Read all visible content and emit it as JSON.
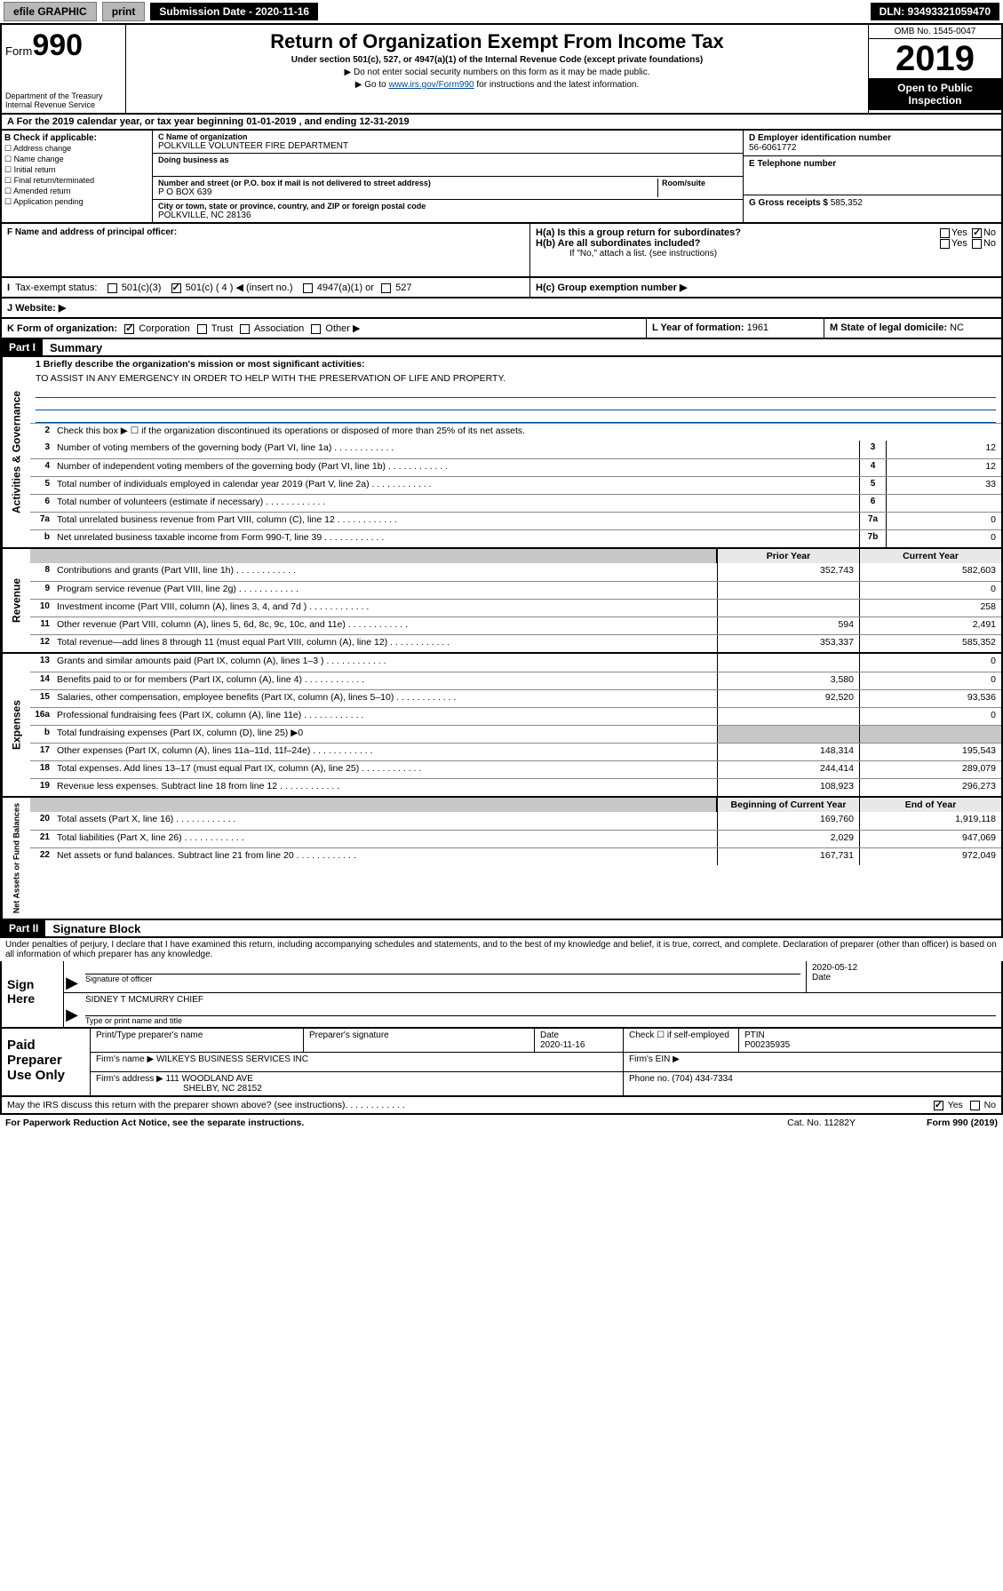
{
  "topbar": {
    "efile": "efile GRAPHIC",
    "print": "print",
    "submission": "Submission Date - 2020-11-16",
    "dln": "DLN: 93493321059470"
  },
  "header": {
    "form_prefix": "Form",
    "form_num": "990",
    "dept": "Department of the Treasury",
    "irs": "Internal Revenue Service",
    "title": "Return of Organization Exempt From Income Tax",
    "sub": "Under section 501(c), 527, or 4947(a)(1) of the Internal Revenue Code (except private foundations)",
    "note1": "▶ Do not enter social security numbers on this form as it may be made public.",
    "note2_pre": "▶ Go to ",
    "note2_link": "www.irs.gov/Form990",
    "note2_post": " for instructions and the latest information.",
    "omb": "OMB No. 1545-0047",
    "year": "2019",
    "open": "Open to Public Inspection"
  },
  "taxyear": "A For the 2019 calendar year, or tax year beginning 01-01-2019   , and ending 12-31-2019",
  "checkB": {
    "hdr": "B Check if applicable:",
    "items": [
      "Address change",
      "Name change",
      "Initial return",
      "Final return/terminated",
      "Amended return",
      "Application pending"
    ]
  },
  "entity": {
    "name_lbl": "C Name of organization",
    "name": "POLKVILLE VOLUNTEER FIRE DEPARTMENT",
    "dba_lbl": "Doing business as",
    "addr_lbl": "Number and street (or P.O. box if mail is not delivered to street address)",
    "addr": "P O BOX 639",
    "room_lbl": "Room/suite",
    "city_lbl": "City or town, state or province, country, and ZIP or foreign postal code",
    "city": "POLKVILLE, NC  28136"
  },
  "rightcol": {
    "ein_lbl": "D Employer identification number",
    "ein": "56-6061772",
    "tel_lbl": "E Telephone number",
    "gross_lbl": "G Gross receipts $",
    "gross": "585,352"
  },
  "rowF": {
    "f_lbl": "F  Name and address of principal officer:",
    "ha": "H(a)  Is this a group return for subordinates?",
    "hb": "H(b)  Are all subordinates included?",
    "hb_note": "If \"No,\" attach a list. (see instructions)",
    "hc": "H(c)  Group exemption number ▶",
    "yes": "Yes",
    "no": "No"
  },
  "rowI": {
    "lbl": "Tax-exempt status:",
    "opts": [
      "501(c)(3)",
      "501(c) ( 4 ) ◀ (insert no.)",
      "4947(a)(1) or",
      "527"
    ]
  },
  "rowJ": {
    "lbl": "J   Website: ▶"
  },
  "rowK": {
    "lbl": "K Form of organization:",
    "opts": [
      "Corporation",
      "Trust",
      "Association",
      "Other ▶"
    ],
    "l_lbl": "L Year of formation:",
    "l_val": "1961",
    "m_lbl": "M State of legal domicile:",
    "m_val": "NC"
  },
  "part1": {
    "tag": "Part I",
    "title": "Summary",
    "q1": "1  Briefly describe the organization's mission or most significant activities:",
    "mission": "TO ASSIST IN ANY EMERGENCY IN ORDER TO HELP WITH THE PRESERVATION OF LIFE AND PROPERTY.",
    "q2": "Check this box ▶ ☐  if the organization discontinued its operations or disposed of more than 25% of its net assets.",
    "governance_rows": [
      {
        "n": "3",
        "d": "Number of voting members of the governing body (Part VI, line 1a)",
        "box": "3",
        "v": "12"
      },
      {
        "n": "4",
        "d": "Number of independent voting members of the governing body (Part VI, line 1b)",
        "box": "4",
        "v": "12"
      },
      {
        "n": "5",
        "d": "Total number of individuals employed in calendar year 2019 (Part V, line 2a)",
        "box": "5",
        "v": "33"
      },
      {
        "n": "6",
        "d": "Total number of volunteers (estimate if necessary)",
        "box": "6",
        "v": ""
      },
      {
        "n": "7a",
        "d": "Total unrelated business revenue from Part VIII, column (C), line 12",
        "box": "7a",
        "v": "0"
      },
      {
        "n": "b",
        "d": "Net unrelated business taxable income from Form 990-T, line 39",
        "box": "7b",
        "v": "0"
      }
    ],
    "col_prior": "Prior Year",
    "col_current": "Current Year",
    "revenue_rows": [
      {
        "n": "8",
        "d": "Contributions and grants (Part VIII, line 1h)",
        "p": "352,743",
        "c": "582,603"
      },
      {
        "n": "9",
        "d": "Program service revenue (Part VIII, line 2g)",
        "p": "",
        "c": "0"
      },
      {
        "n": "10",
        "d": "Investment income (Part VIII, column (A), lines 3, 4, and 7d )",
        "p": "",
        "c": "258"
      },
      {
        "n": "11",
        "d": "Other revenue (Part VIII, column (A), lines 5, 6d, 8c, 9c, 10c, and 11e)",
        "p": "594",
        "c": "2,491"
      },
      {
        "n": "12",
        "d": "Total revenue—add lines 8 through 11 (must equal Part VIII, column (A), line 12)",
        "p": "353,337",
        "c": "585,352"
      }
    ],
    "expense_rows": [
      {
        "n": "13",
        "d": "Grants and similar amounts paid (Part IX, column (A), lines 1–3 )",
        "p": "",
        "c": "0"
      },
      {
        "n": "14",
        "d": "Benefits paid to or for members (Part IX, column (A), line 4)",
        "p": "3,580",
        "c": "0"
      },
      {
        "n": "15",
        "d": "Salaries, other compensation, employee benefits (Part IX, column (A), lines 5–10)",
        "p": "92,520",
        "c": "93,536"
      },
      {
        "n": "16a",
        "d": "Professional fundraising fees (Part IX, column (A), line 11e)",
        "p": "",
        "c": "0"
      },
      {
        "n": "b",
        "d": "Total fundraising expenses (Part IX, column (D), line 25) ▶0",
        "p": "—",
        "c": "—"
      },
      {
        "n": "17",
        "d": "Other expenses (Part IX, column (A), lines 11a–11d, 11f–24e)",
        "p": "148,314",
        "c": "195,543"
      },
      {
        "n": "18",
        "d": "Total expenses. Add lines 13–17 (must equal Part IX, column (A), line 25)",
        "p": "244,414",
        "c": "289,079"
      },
      {
        "n": "19",
        "d": "Revenue less expenses. Subtract line 18 from line 12",
        "p": "108,923",
        "c": "296,273"
      }
    ],
    "col_begin": "Beginning of Current Year",
    "col_end": "End of Year",
    "netassets_rows": [
      {
        "n": "20",
        "d": "Total assets (Part X, line 16)",
        "p": "169,760",
        "c": "1,919,118"
      },
      {
        "n": "21",
        "d": "Total liabilities (Part X, line 26)",
        "p": "2,029",
        "c": "947,069"
      },
      {
        "n": "22",
        "d": "Net assets or fund balances. Subtract line 21 from line 20",
        "p": "167,731",
        "c": "972,049"
      }
    ],
    "vlabels": {
      "gov": "Activities & Governance",
      "rev": "Revenue",
      "exp": "Expenses",
      "net": "Net Assets or Fund Balances"
    }
  },
  "part2": {
    "tag": "Part II",
    "title": "Signature Block",
    "decl": "Under penalties of perjury, I declare that I have examined this return, including accompanying schedules and statements, and to the best of my knowledge and belief, it is true, correct, and complete. Declaration of preparer (other than officer) is based on all information of which preparer has any knowledge.",
    "sign_here": "Sign Here",
    "sig_officer_lbl": "Signature of officer",
    "sig_date": "2020-05-12",
    "date_lbl": "Date",
    "officer_name": "SIDNEY T MCMURRY  CHIEF",
    "type_lbl": "Type or print name and title",
    "paid": "Paid Preparer Use Only",
    "prep_name_lbl": "Print/Type preparer's name",
    "prep_sig_lbl": "Preparer's signature",
    "prep_date_lbl": "Date",
    "prep_date": "2020-11-16",
    "check_self": "Check ☐ if self-employed",
    "ptin_lbl": "PTIN",
    "ptin": "P00235935",
    "firm_name_lbl": "Firm's name    ▶",
    "firm_name": "WILKEYS BUSINESS SERVICES INC",
    "firm_ein_lbl": "Firm's EIN ▶",
    "firm_addr_lbl": "Firm's address ▶",
    "firm_addr1": "111 WOODLAND AVE",
    "firm_addr2": "SHELBY, NC  28152",
    "phone_lbl": "Phone no.",
    "phone": "(704) 434-7334",
    "discuss": "May the IRS discuss this return with the preparer shown above? (see instructions)",
    "yes": "Yes",
    "no": "No"
  },
  "footer": {
    "pra": "For Paperwork Reduction Act Notice, see the separate instructions.",
    "cat": "Cat. No. 11282Y",
    "form": "Form 990 (2019)"
  }
}
